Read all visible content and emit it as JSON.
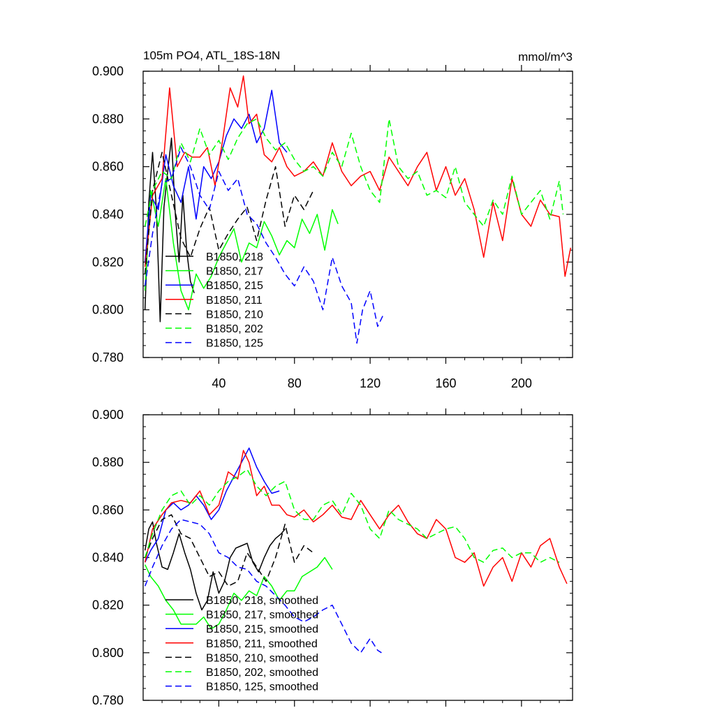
{
  "chart_data": [
    {
      "type": "line",
      "title": "105m PO4, ATL_18S-18N",
      "units": "mmol/m^3",
      "xlim": [
        0,
        227
      ],
      "ylim": [
        0.78,
        0.9
      ],
      "xticks": [
        40,
        80,
        120,
        160,
        200
      ],
      "xtick_labels": [
        "40",
        "80",
        "120",
        "160",
        "200"
      ],
      "yticks": [
        0.78,
        0.8,
        0.82,
        0.84,
        0.86,
        0.88,
        0.9
      ],
      "ytick_labels": [
        "0.780",
        "0.800",
        "0.820",
        "0.840",
        "0.860",
        "0.880",
        "0.900"
      ],
      "legend_position": "bottom-left",
      "series": [
        {
          "name": "B1850, 218",
          "color": "#000000",
          "dash": "solid",
          "x": [
            1,
            3,
            5,
            7,
            9,
            11,
            13,
            15,
            17,
            19,
            21,
            23,
            25,
            27
          ],
          "y": [
            0.8,
            0.845,
            0.866,
            0.842,
            0.795,
            0.843,
            0.858,
            0.872,
            0.84,
            0.82,
            0.848,
            0.825,
            0.812,
            0.807
          ]
        },
        {
          "name": "B1850, 217",
          "color": "#00ff00",
          "dash": "solid",
          "x": [
            1,
            4,
            8,
            12,
            16,
            20,
            24,
            28,
            32,
            36,
            40,
            44,
            48,
            52,
            56,
            60,
            64,
            68,
            72,
            76,
            80,
            84,
            88,
            92,
            96,
            100,
            103
          ],
          "y": [
            0.808,
            0.85,
            0.835,
            0.855,
            0.828,
            0.808,
            0.8,
            0.815,
            0.809,
            0.814,
            0.822,
            0.828,
            0.834,
            0.82,
            0.828,
            0.826,
            0.837,
            0.831,
            0.823,
            0.829,
            0.826,
            0.838,
            0.832,
            0.84,
            0.825,
            0.842,
            0.836
          ]
        },
        {
          "name": "B1850, 215",
          "color": "#0000ff",
          "dash": "solid",
          "x": [
            1,
            4,
            8,
            12,
            16,
            20,
            24,
            28,
            32,
            36,
            40,
            44,
            48,
            52,
            56,
            60,
            64,
            68,
            72,
            76
          ],
          "y": [
            0.82,
            0.848,
            0.842,
            0.865,
            0.852,
            0.845,
            0.86,
            0.838,
            0.86,
            0.855,
            0.862,
            0.873,
            0.88,
            0.876,
            0.882,
            0.87,
            0.876,
            0.892,
            0.87,
            0.866
          ]
        },
        {
          "name": "B1850, 211",
          "color": "#ff0000",
          "dash": "solid",
          "x": [
            1,
            5,
            10,
            14,
            18,
            22,
            26,
            30,
            34,
            38,
            42,
            46,
            50,
            53,
            56,
            60,
            64,
            68,
            72,
            76,
            80,
            85,
            90,
            95,
            100,
            105,
            110,
            115,
            120,
            125,
            130,
            135,
            140,
            145,
            150,
            155,
            160,
            165,
            170,
            175,
            180,
            185,
            190,
            195,
            200,
            205,
            210,
            215,
            220,
            223,
            226
          ],
          "y": [
            0.818,
            0.848,
            0.855,
            0.893,
            0.86,
            0.866,
            0.864,
            0.864,
            0.868,
            0.852,
            0.871,
            0.893,
            0.885,
            0.898,
            0.878,
            0.882,
            0.865,
            0.862,
            0.868,
            0.86,
            0.856,
            0.858,
            0.862,
            0.856,
            0.87,
            0.858,
            0.852,
            0.856,
            0.858,
            0.85,
            0.864,
            0.858,
            0.852,
            0.86,
            0.866,
            0.85,
            0.86,
            0.848,
            0.855,
            0.842,
            0.822,
            0.845,
            0.829,
            0.855,
            0.84,
            0.835,
            0.846,
            0.84,
            0.839,
            0.814,
            0.826
          ]
        },
        {
          "name": "B1850, 210",
          "color": "#000000",
          "dash": "dashed",
          "x": [
            1,
            5,
            10,
            15,
            20,
            25,
            30,
            35,
            40,
            45,
            50,
            55,
            60,
            65,
            70,
            75,
            80,
            85,
            90
          ],
          "y": [
            0.815,
            0.85,
            0.866,
            0.848,
            0.83,
            0.822,
            0.834,
            0.843,
            0.825,
            0.832,
            0.838,
            0.843,
            0.829,
            0.846,
            0.86,
            0.835,
            0.848,
            0.842,
            0.85
          ]
        },
        {
          "name": "B1850, 202",
          "color": "#00ff00",
          "dash": "dashed",
          "x": [
            1,
            5,
            10,
            15,
            20,
            25,
            30,
            35,
            40,
            45,
            50,
            55,
            60,
            65,
            70,
            75,
            80,
            85,
            90,
            95,
            100,
            105,
            110,
            115,
            120,
            125,
            130,
            135,
            140,
            145,
            150,
            155,
            160,
            165,
            170,
            175,
            180,
            185,
            190,
            195,
            200,
            205,
            210,
            215,
            220,
            222
          ],
          "y": [
            0.835,
            0.85,
            0.858,
            0.855,
            0.87,
            0.862,
            0.876,
            0.865,
            0.871,
            0.863,
            0.872,
            0.878,
            0.88,
            0.872,
            0.867,
            0.87,
            0.863,
            0.858,
            0.86,
            0.856,
            0.866,
            0.86,
            0.874,
            0.86,
            0.85,
            0.845,
            0.88,
            0.86,
            0.855,
            0.858,
            0.848,
            0.85,
            0.847,
            0.86,
            0.845,
            0.84,
            0.835,
            0.846,
            0.84,
            0.856,
            0.84,
            0.845,
            0.85,
            0.838,
            0.854,
            0.84
          ]
        },
        {
          "name": "B1850, 125",
          "color": "#0000ff",
          "dash": "dashed",
          "x": [
            1,
            5,
            10,
            15,
            20,
            25,
            30,
            35,
            40,
            45,
            50,
            55,
            60,
            65,
            70,
            75,
            80,
            85,
            90,
            95,
            100,
            105,
            110,
            113,
            116,
            120,
            124,
            127
          ],
          "y": [
            0.81,
            0.832,
            0.853,
            0.855,
            0.868,
            0.86,
            0.848,
            0.842,
            0.858,
            0.85,
            0.855,
            0.84,
            0.836,
            0.828,
            0.822,
            0.815,
            0.81,
            0.818,
            0.812,
            0.8,
            0.822,
            0.81,
            0.803,
            0.786,
            0.8,
            0.808,
            0.793,
            0.798
          ]
        }
      ]
    },
    {
      "type": "line",
      "title": "",
      "xlim": [
        0,
        227
      ],
      "ylim": [
        0.78,
        0.9
      ],
      "xticks": [
        40,
        80,
        120,
        160,
        200
      ],
      "xtick_labels": [],
      "yticks": [
        0.78,
        0.8,
        0.82,
        0.84,
        0.86,
        0.88,
        0.9
      ],
      "ytick_labels": [
        "0.780",
        "0.800",
        "0.820",
        "0.840",
        "0.860",
        "0.880",
        "0.900"
      ],
      "legend_position": "bottom-left",
      "series": [
        {
          "name": "B1850, 218, smoothed",
          "color": "#000000",
          "dash": "solid",
          "x": [
            1,
            3,
            5,
            7,
            10,
            13,
            16,
            19,
            22,
            25,
            28,
            31,
            34,
            37,
            40,
            43,
            46,
            49,
            52,
            55,
            58,
            61,
            64,
            67,
            70,
            73,
            75
          ],
          "y": [
            0.843,
            0.852,
            0.855,
            0.846,
            0.836,
            0.835,
            0.842,
            0.85,
            0.842,
            0.835,
            0.825,
            0.818,
            0.822,
            0.834,
            0.825,
            0.83,
            0.84,
            0.844,
            0.845,
            0.846,
            0.838,
            0.834,
            0.84,
            0.845,
            0.848,
            0.85,
            0.852
          ]
        },
        {
          "name": "B1850, 217, smoothed",
          "color": "#00ff00",
          "dash": "solid",
          "x": [
            1,
            4,
            8,
            12,
            16,
            20,
            24,
            28,
            32,
            36,
            40,
            44,
            48,
            52,
            56,
            60,
            64,
            68,
            72,
            76,
            80,
            84,
            88,
            92,
            96,
            100
          ],
          "y": [
            0.837,
            0.832,
            0.828,
            0.822,
            0.818,
            0.812,
            0.812,
            0.812,
            0.815,
            0.81,
            0.812,
            0.818,
            0.825,
            0.822,
            0.826,
            0.824,
            0.832,
            0.828,
            0.822,
            0.826,
            0.826,
            0.832,
            0.834,
            0.836,
            0.84,
            0.835
          ]
        },
        {
          "name": "B1850, 215, smoothed",
          "color": "#0000ff",
          "dash": "solid",
          "x": [
            1,
            4,
            8,
            12,
            16,
            20,
            24,
            28,
            32,
            36,
            40,
            44,
            48,
            52,
            56,
            60,
            64,
            68,
            72
          ],
          "y": [
            0.838,
            0.843,
            0.848,
            0.86,
            0.863,
            0.86,
            0.862,
            0.866,
            0.862,
            0.856,
            0.86,
            0.868,
            0.874,
            0.88,
            0.886,
            0.878,
            0.872,
            0.867,
            0.868
          ]
        },
        {
          "name": "B1850, 211, smoothed",
          "color": "#ff0000",
          "dash": "solid",
          "x": [
            1,
            5,
            10,
            15,
            20,
            25,
            30,
            35,
            40,
            45,
            50,
            53,
            56,
            60,
            64,
            68,
            72,
            76,
            80,
            85,
            90,
            95,
            100,
            105,
            110,
            115,
            120,
            125,
            130,
            135,
            140,
            145,
            150,
            155,
            160,
            165,
            170,
            175,
            180,
            185,
            190,
            195,
            200,
            205,
            210,
            215,
            220,
            224
          ],
          "y": [
            0.838,
            0.852,
            0.858,
            0.863,
            0.864,
            0.863,
            0.868,
            0.858,
            0.862,
            0.876,
            0.873,
            0.885,
            0.88,
            0.866,
            0.87,
            0.862,
            0.862,
            0.858,
            0.857,
            0.86,
            0.855,
            0.858,
            0.862,
            0.857,
            0.856,
            0.864,
            0.858,
            0.852,
            0.858,
            0.862,
            0.855,
            0.85,
            0.848,
            0.856,
            0.852,
            0.84,
            0.838,
            0.842,
            0.828,
            0.836,
            0.84,
            0.83,
            0.842,
            0.836,
            0.845,
            0.848,
            0.836,
            0.829
          ]
        },
        {
          "name": "B1850, 210, smoothed",
          "color": "#000000",
          "dash": "dashed",
          "x": [
            1,
            5,
            10,
            15,
            20,
            25,
            30,
            35,
            40,
            45,
            50,
            55,
            60,
            65,
            70,
            75,
            80,
            85,
            90
          ],
          "y": [
            0.84,
            0.848,
            0.856,
            0.858,
            0.85,
            0.848,
            0.84,
            0.832,
            0.834,
            0.828,
            0.83,
            0.842,
            0.836,
            0.83,
            0.84,
            0.854,
            0.838,
            0.845,
            0.842
          ]
        },
        {
          "name": "B1850, 202, smoothed",
          "color": "#00ff00",
          "dash": "dashed",
          "x": [
            1,
            5,
            10,
            15,
            20,
            25,
            30,
            35,
            40,
            45,
            50,
            55,
            60,
            65,
            70,
            75,
            80,
            85,
            90,
            95,
            100,
            105,
            110,
            115,
            120,
            125,
            130,
            135,
            140,
            145,
            150,
            155,
            160,
            165,
            170,
            175,
            180,
            185,
            190,
            195,
            200,
            205,
            210,
            215,
            220
          ],
          "y": [
            0.84,
            0.85,
            0.86,
            0.866,
            0.868,
            0.862,
            0.866,
            0.862,
            0.868,
            0.872,
            0.874,
            0.877,
            0.87,
            0.866,
            0.87,
            0.872,
            0.86,
            0.856,
            0.856,
            0.862,
            0.864,
            0.858,
            0.867,
            0.862,
            0.852,
            0.848,
            0.86,
            0.856,
            0.854,
            0.852,
            0.848,
            0.85,
            0.852,
            0.853,
            0.848,
            0.84,
            0.838,
            0.843,
            0.844,
            0.84,
            0.842,
            0.842,
            0.838,
            0.84,
            0.838
          ]
        },
        {
          "name": "B1850, 125, smoothed",
          "color": "#0000ff",
          "dash": "dashed",
          "x": [
            1,
            5,
            10,
            15,
            20,
            25,
            30,
            35,
            40,
            45,
            50,
            55,
            60,
            65,
            70,
            75,
            80,
            85,
            90,
            95,
            100,
            105,
            110,
            115,
            120,
            124,
            126
          ],
          "y": [
            0.828,
            0.836,
            0.845,
            0.852,
            0.856,
            0.855,
            0.854,
            0.85,
            0.842,
            0.84,
            0.836,
            0.835,
            0.83,
            0.828,
            0.824,
            0.82,
            0.815,
            0.813,
            0.815,
            0.818,
            0.82,
            0.812,
            0.804,
            0.8,
            0.806,
            0.801,
            0.8
          ]
        }
      ]
    }
  ]
}
